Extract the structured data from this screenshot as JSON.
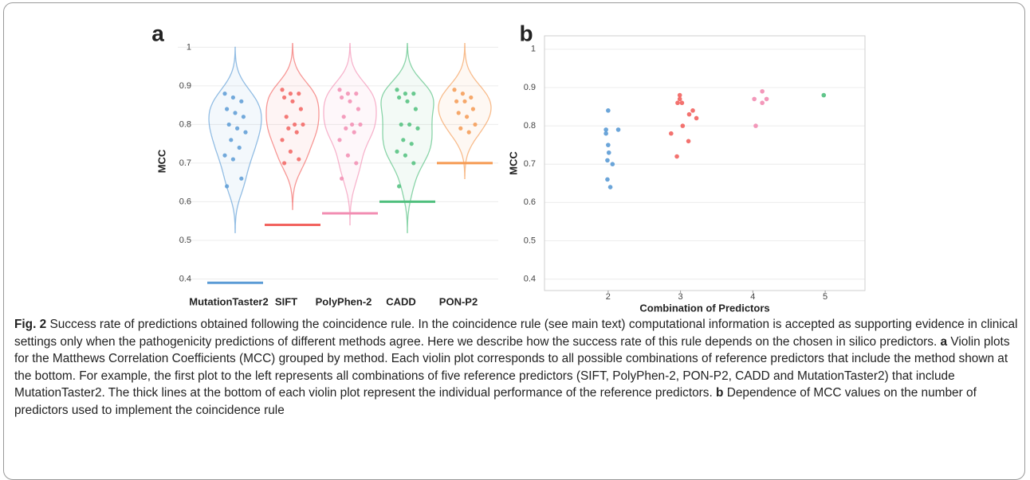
{
  "chart_data": [
    {
      "type": "violin",
      "title": "a",
      "ylabel": "MCC",
      "categories": [
        "MutationTaster2",
        "SIFT",
        "PolyPhen-2",
        "CADD",
        "PON-P2"
      ],
      "groups": [
        {
          "color": "#5b9bd5",
          "reference": 0.39,
          "values": [
            0.88,
            0.87,
            0.86,
            0.84,
            0.83,
            0.82,
            0.8,
            0.79,
            0.78,
            0.76,
            0.74,
            0.72,
            0.71,
            0.66,
            0.64
          ]
        },
        {
          "color": "#f2635f",
          "reference": 0.54,
          "values": [
            0.89,
            0.88,
            0.88,
            0.87,
            0.86,
            0.84,
            0.82,
            0.8,
            0.8,
            0.79,
            0.78,
            0.76,
            0.73,
            0.71,
            0.7
          ]
        },
        {
          "color": "#f28db2",
          "reference": 0.57,
          "values": [
            0.89,
            0.88,
            0.88,
            0.87,
            0.86,
            0.84,
            0.82,
            0.8,
            0.8,
            0.79,
            0.78,
            0.76,
            0.72,
            0.7,
            0.66
          ]
        },
        {
          "color": "#4fbf7d",
          "reference": 0.6,
          "values": [
            0.89,
            0.88,
            0.88,
            0.87,
            0.86,
            0.84,
            0.8,
            0.8,
            0.79,
            0.76,
            0.75,
            0.73,
            0.72,
            0.7,
            0.64
          ]
        },
        {
          "color": "#f59a52",
          "reference": 0.7,
          "values": [
            0.89,
            0.88,
            0.87,
            0.86,
            0.86,
            0.84,
            0.83,
            0.82,
            0.8,
            0.79,
            0.78
          ]
        }
      ],
      "ylim": [
        0.37,
        1.04
      ],
      "yticks": [
        0.4,
        0.5,
        0.6,
        0.7,
        0.8,
        0.9,
        1
      ],
      "grid": true
    },
    {
      "type": "scatter",
      "title": "b",
      "ylabel": "MCC",
      "xlabel": "Combination of Predictors",
      "groups": [
        {
          "color": "#5b9bd5",
          "x": [
            2.0,
            1.97,
            1.97,
            2.14,
            2.0,
            2.01,
            1.99,
            2.06,
            1.99,
            2.03
          ],
          "y": [
            0.84,
            0.79,
            0.78,
            0.79,
            0.75,
            0.73,
            0.71,
            0.7,
            0.66,
            0.64
          ]
        },
        {
          "color": "#f2635f",
          "x": [
            2.99,
            2.99,
            2.96,
            3.02,
            3.17,
            3.12,
            3.22,
            3.03,
            2.87,
            3.11,
            2.95
          ],
          "y": [
            0.88,
            0.87,
            0.86,
            0.86,
            0.84,
            0.83,
            0.82,
            0.8,
            0.78,
            0.76,
            0.72
          ]
        },
        {
          "color": "#f28db2",
          "x": [
            4.13,
            4.02,
            4.19,
            4.13,
            4.04
          ],
          "y": [
            0.89,
            0.87,
            0.87,
            0.86,
            0.8
          ]
        },
        {
          "color": "#4fbf7d",
          "x": [
            4.98
          ],
          "y": [
            0.88
          ]
        }
      ],
      "xlim": [
        1.12,
        5.55
      ],
      "xticks": [
        2,
        3,
        4,
        5
      ],
      "ylim": [
        0.37,
        1.035
      ],
      "yticks": [
        0.4,
        0.5,
        0.6,
        0.7,
        0.8,
        0.9,
        1
      ],
      "grid": true
    }
  ],
  "caption": {
    "label": "Fig. 2",
    "text": "Success rate of predictions obtained following the coincidence rule. In the coincidence rule (see main text) computational information is accepted as supporting evidence in clinical settings only when the pathogenicity predictions of different methods agree. Here we describe how the success rate of this rule depends on the chosen in silico predictors.",
    "a_label": "a",
    "a_text": "Violin plots for the Matthews Correlation Coefficients (MCC) grouped by method. Each violin plot corresponds to all possible combinations of reference predictors that include the method shown at the bottom. For example, the first plot to the left represents all combinations of five reference predictors (SIFT, PolyPhen-2, PON-P2, CADD and MutationTaster2) that include MutationTaster2. The thick lines at the bottom of each violin plot represent the individual performance of the reference predictors.",
    "b_label": "b",
    "b_text": "Dependence of MCC values on the number of predictors used to implement the coincidence rule"
  }
}
